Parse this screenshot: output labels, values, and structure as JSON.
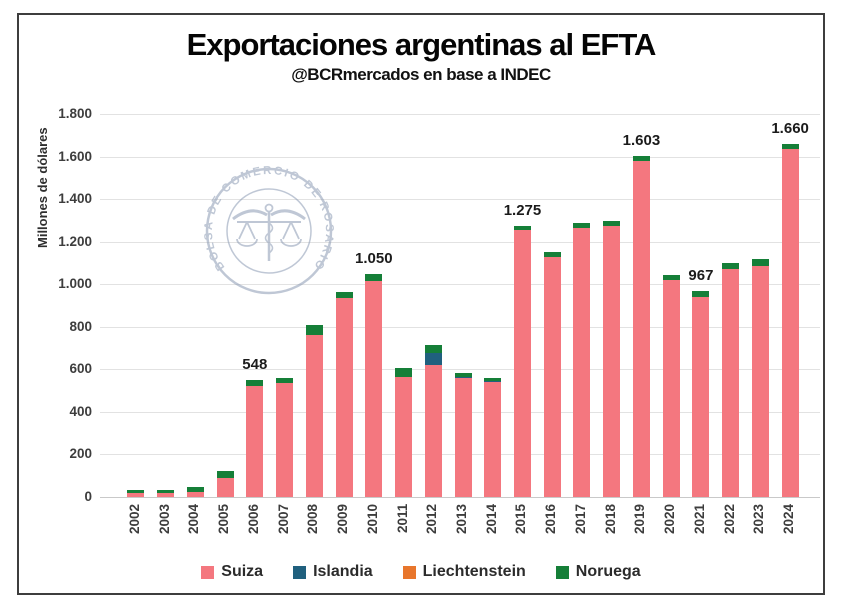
{
  "chart_data": {
    "type": "bar",
    "stacked": true,
    "title": "Exportaciones argentinas al EFTA",
    "subtitle": "@BCRmercados en base a INDEC",
    "xlabel": "",
    "ylabel": "Millones de dólares",
    "ylim": [
      0,
      1800
    ],
    "ytick_step": 200,
    "ytick_labels": [
      "0",
      "200",
      "400",
      "600",
      "800",
      "1.000",
      "1.200",
      "1.400",
      "1.600",
      "1.800"
    ],
    "grid": true,
    "legend_position": "bottom",
    "categories": [
      "2002",
      "2003",
      "2004",
      "2005",
      "2006",
      "2007",
      "2008",
      "2009",
      "2010",
      "2011",
      "2012",
      "2013",
      "2014",
      "2015",
      "2016",
      "2017",
      "2018",
      "2019",
      "2020",
      "2021",
      "2022",
      "2023",
      "2024"
    ],
    "series": [
      {
        "name": "Suiza",
        "color": "#f4777f",
        "values": [
          20,
          20,
          25,
          90,
          523,
          535,
          763,
          934,
          1015,
          566,
          620,
          560,
          541,
          1253,
          1130,
          1263,
          1272,
          1581,
          1018,
          940,
          1070,
          1084,
          1635
        ]
      },
      {
        "name": "Islandia",
        "color": "#20607e",
        "values": [
          0,
          0,
          0,
          0,
          0,
          0,
          0,
          0,
          0,
          0,
          55,
          5,
          4,
          0,
          0,
          0,
          0,
          0,
          0,
          0,
          0,
          0,
          0
        ]
      },
      {
        "name": "Liechtenstein",
        "color": "#e8762c",
        "values": [
          0,
          0,
          0,
          0,
          0,
          0,
          0,
          0,
          0,
          0,
          0,
          0,
          0,
          0,
          0,
          0,
          0,
          0,
          0,
          0,
          0,
          0,
          0
        ]
      },
      {
        "name": "Noruega",
        "color": "#157f38",
        "values": [
          13,
          13,
          20,
          32,
          25,
          25,
          45,
          30,
          35,
          40,
          40,
          18,
          14,
          22,
          22,
          25,
          25,
          22,
          25,
          27,
          30,
          35,
          25
        ]
      }
    ],
    "bar_labels": {
      "2006": "548",
      "2010": "1.050",
      "2015": "1.275",
      "2019": "1.603",
      "2021": "967",
      "2024": "1.660"
    }
  },
  "watermark": {
    "label": "BOLSA DE COMERCIO DE ROSARIO",
    "color": "#8b9bb4"
  }
}
